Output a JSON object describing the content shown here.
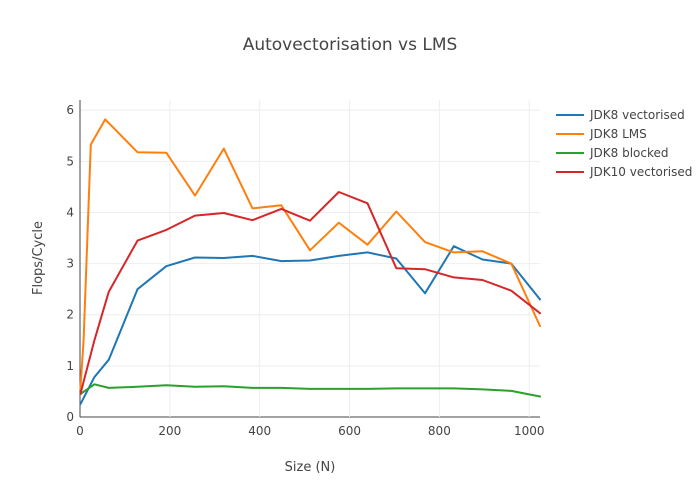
{
  "chart_data": {
    "type": "line",
    "title": "Autovectorisation vs LMS",
    "xlabel": "Size (N)",
    "ylabel": "Flops/Cycle",
    "xlim": [
      0,
      1024
    ],
    "ylim": [
      0,
      6.2
    ],
    "xticks": [
      0,
      200,
      400,
      600,
      800,
      1000
    ],
    "yticks": [
      0,
      1,
      2,
      3,
      4,
      5,
      6
    ],
    "xtick_labels": [
      "0",
      "200",
      "400",
      "600",
      "800",
      "1000"
    ],
    "ytick_labels": [
      "0",
      "1",
      "2",
      "3",
      "4",
      "5",
      "6"
    ],
    "grid": true,
    "legend_position": "right",
    "series": [
      {
        "name": "JDK8 vectorised",
        "color": "#1f77b4",
        "x": [
          1,
          32,
          64,
          128,
          192,
          256,
          320,
          384,
          448,
          512,
          576,
          640,
          704,
          768,
          832,
          896,
          960,
          1024
        ],
        "y": [
          0.25,
          0.78,
          1.12,
          2.5,
          2.95,
          3.12,
          3.11,
          3.15,
          3.05,
          3.06,
          3.15,
          3.22,
          3.1,
          2.42,
          3.34,
          3.08,
          3.0,
          2.3
        ]
      },
      {
        "name": "JDK8 LMS",
        "color": "#ff7f0e",
        "x": [
          1,
          8,
          24,
          56,
          128,
          192,
          256,
          320,
          384,
          448,
          512,
          576,
          640,
          704,
          768,
          832,
          896,
          960,
          1024
        ],
        "y": [
          0.55,
          1.5,
          5.33,
          5.82,
          5.18,
          5.17,
          4.33,
          5.25,
          4.08,
          4.14,
          3.26,
          3.8,
          3.37,
          4.02,
          3.42,
          3.22,
          3.24,
          3.0,
          1.78
        ]
      },
      {
        "name": "JDK8 blocked",
        "color": "#2ca02c",
        "x": [
          1,
          32,
          64,
          128,
          192,
          256,
          320,
          384,
          448,
          512,
          576,
          640,
          704,
          768,
          832,
          896,
          960,
          1024
        ],
        "y": [
          0.45,
          0.64,
          0.57,
          0.59,
          0.62,
          0.59,
          0.6,
          0.57,
          0.57,
          0.55,
          0.55,
          0.55,
          0.56,
          0.56,
          0.56,
          0.54,
          0.51,
          0.4
        ]
      },
      {
        "name": "JDK10 vectorised",
        "color": "#d62728",
        "x": [
          1,
          32,
          64,
          128,
          192,
          256,
          320,
          384,
          448,
          512,
          576,
          640,
          704,
          768,
          832,
          896,
          960,
          1024
        ],
        "y": [
          0.45,
          1.5,
          2.45,
          3.45,
          3.66,
          3.94,
          3.99,
          3.85,
          4.07,
          3.84,
          4.4,
          4.18,
          2.91,
          2.89,
          2.73,
          2.68,
          2.47,
          2.03
        ]
      }
    ]
  }
}
